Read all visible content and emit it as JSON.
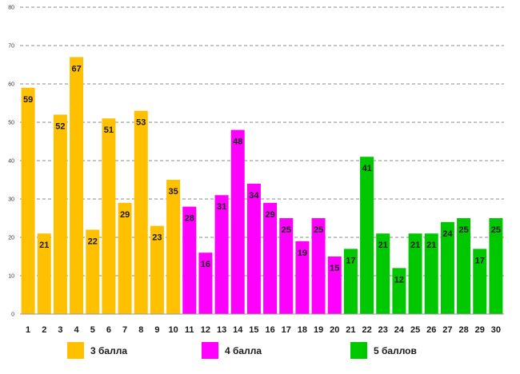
{
  "chart_data": {
    "type": "bar",
    "title": "",
    "xlabel": "",
    "ylabel": "",
    "ylim": [
      0,
      80
    ],
    "y_ticks": [
      0,
      10,
      20,
      30,
      40,
      50,
      60,
      70,
      80
    ],
    "grid": true,
    "legend_position": "bottom",
    "categories": [
      "1",
      "2",
      "3",
      "4",
      "5",
      "6",
      "7",
      "8",
      "9",
      "10",
      "11",
      "12",
      "13",
      "14",
      "15",
      "16",
      "17",
      "18",
      "19",
      "20",
      "21",
      "22",
      "23",
      "24",
      "25",
      "26",
      "27",
      "28",
      "29",
      "30"
    ],
    "series": [
      {
        "name": "3 балла",
        "color": "#FFC000",
        "values": [
          59,
          21,
          52,
          67,
          22,
          51,
          29,
          53,
          23,
          35,
          null,
          null,
          null,
          null,
          null,
          null,
          null,
          null,
          null,
          null,
          null,
          null,
          null,
          null,
          null,
          null,
          null,
          null,
          null,
          null
        ]
      },
      {
        "name": "4 балла",
        "color": "#FF00FF",
        "values": [
          null,
          null,
          null,
          null,
          null,
          null,
          null,
          null,
          null,
          null,
          28,
          16,
          31,
          48,
          34,
          29,
          25,
          19,
          25,
          15,
          null,
          null,
          null,
          null,
          null,
          null,
          null,
          null,
          null,
          null
        ]
      },
      {
        "name": "5 баллов",
        "color": "#00C800",
        "values": [
          null,
          null,
          null,
          null,
          null,
          null,
          null,
          null,
          null,
          null,
          null,
          null,
          null,
          null,
          null,
          null,
          null,
          null,
          null,
          null,
          17,
          41,
          21,
          12,
          21,
          21,
          24,
          25,
          17,
          25
        ]
      }
    ]
  }
}
